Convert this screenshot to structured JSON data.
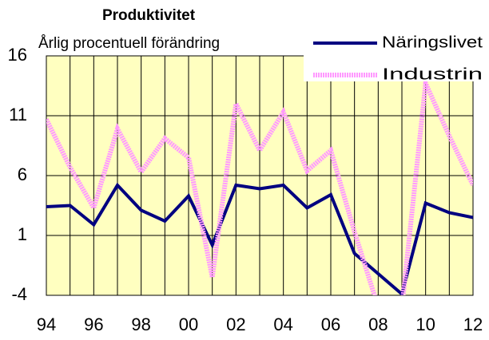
{
  "chart_data": {
    "type": "line",
    "title": "Produktivitet",
    "subtitle": "Årlig procentuell förändring",
    "categories": [
      "94",
      null,
      "96",
      null,
      "98",
      null,
      "00",
      null,
      "02",
      null,
      "04",
      null,
      "06",
      null,
      "08",
      null,
      "10",
      null,
      "12"
    ],
    "series": [
      {
        "name": "Näringslivet",
        "color": "#000080",
        "values": [
          3.4,
          3.5,
          1.9,
          5.2,
          3.1,
          2.2,
          4.3,
          0.2,
          5.2,
          4.9,
          5.2,
          3.3,
          4.4,
          -0.5,
          -2.2,
          -3.9,
          3.7,
          2.9,
          2.5
        ]
      },
      {
        "name": "Industrin",
        "color": "#ff99ff",
        "values": [
          10.7,
          6.7,
          3.3,
          9.9,
          6.3,
          9.1,
          7.5,
          -2.5,
          12,
          8.1,
          11.3,
          6.4,
          8.1,
          1.3,
          -5,
          -5,
          13.7,
          9.3,
          5.2
        ]
      }
    ],
    "ylim": [
      -4,
      16
    ],
    "yticks": [
      -4,
      1,
      6,
      11,
      16
    ],
    "grid": true,
    "legend": "top-right"
  }
}
